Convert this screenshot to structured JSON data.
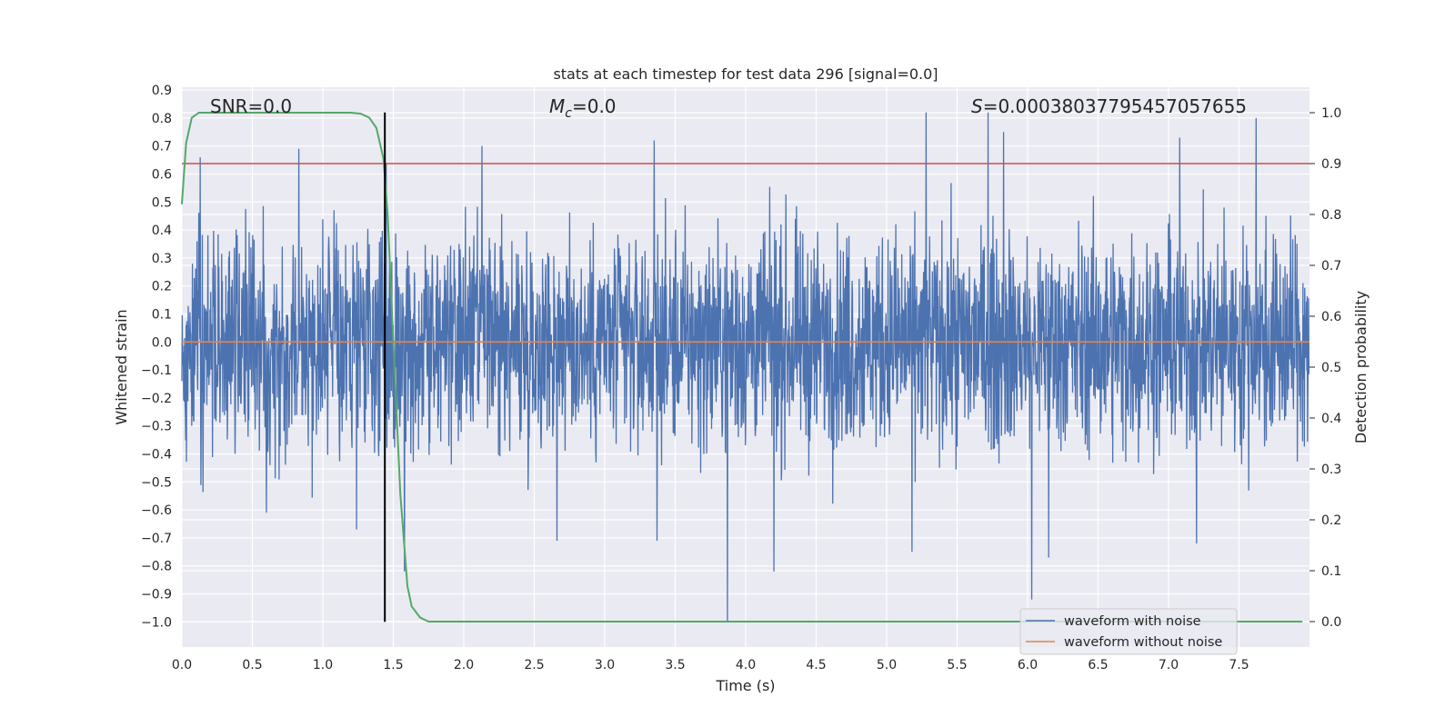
{
  "chart_data": {
    "type": "line",
    "title": "stats at each timestep for test data 296 [signal=0.0]",
    "xlabel": "Time (s)",
    "ylabel": "Whitened strain",
    "ylabel_right": "Detection probability",
    "xlim": [
      0.0,
      8.0
    ],
    "ylim": [
      -1.09,
      0.91
    ],
    "ylim_right": [
      -0.05,
      1.05
    ],
    "x_ticks": [
      "0.0",
      "0.5",
      "1.0",
      "1.5",
      "2.0",
      "2.5",
      "3.0",
      "3.5",
      "4.0",
      "4.5",
      "5.0",
      "5.5",
      "6.0",
      "6.5",
      "7.0",
      "7.5"
    ],
    "y_ticks": [
      "0.9",
      "0.8",
      "0.7",
      "0.6",
      "0.5",
      "0.4",
      "0.3",
      "0.2",
      "0.1",
      "0.0",
      "-0.1",
      "-0.2",
      "-0.3",
      "-0.4",
      "-0.5",
      "-0.6",
      "-0.7",
      "-0.8",
      "-0.9",
      "-1.0"
    ],
    "y_ticks_right": [
      "1.0",
      "0.9",
      "0.8",
      "0.7",
      "0.6",
      "0.5",
      "0.4",
      "0.3",
      "0.2",
      "0.1",
      "0.0"
    ],
    "annotations": {
      "snr": "SNR=0.0",
      "mc_symbol": "M",
      "mc_sub": "c",
      "mc_value": "=0.0",
      "s_symbol": "S",
      "s_value": "=0.00038037795457057655"
    },
    "legend": [
      "waveform with noise",
      "waveform without noise"
    ],
    "series": [
      {
        "name": "waveform with noise",
        "color": "#4c72b0",
        "description": "dense noise, envelope approx ±0.45, peaks up to 0.82 and down to -1.0 (at t≈3.87)",
        "peaks_high": [
          [
            0.13,
            0.66
          ],
          [
            0.83,
            0.69
          ],
          [
            1.45,
            0.64
          ],
          [
            2.13,
            0.7
          ],
          [
            3.35,
            0.72
          ],
          [
            5.28,
            0.82
          ],
          [
            5.72,
            0.82
          ],
          [
            5.83,
            0.75
          ],
          [
            7.08,
            0.73
          ],
          [
            7.62,
            0.8
          ]
        ],
        "peaks_low": [
          [
            0.6,
            -0.61
          ],
          [
            1.24,
            -0.67
          ],
          [
            1.58,
            -0.82
          ],
          [
            2.66,
            -0.71
          ],
          [
            3.37,
            -0.71
          ],
          [
            3.87,
            -1.0
          ],
          [
            4.2,
            -0.82
          ],
          [
            5.18,
            -0.75
          ],
          [
            6.03,
            -0.92
          ],
          [
            6.15,
            -0.77
          ],
          [
            7.2,
            -0.72
          ]
        ]
      },
      {
        "name": "waveform without noise",
        "color": "#dd8452",
        "x": [
          0.0,
          8.0
        ],
        "y": [
          0.0,
          0.0
        ]
      },
      {
        "name": "detection probability",
        "axis": "right",
        "color": "#55a868",
        "x": [
          0.0,
          0.03,
          0.07,
          0.12,
          0.2,
          0.4,
          0.8,
          1.1,
          1.2,
          1.27,
          1.33,
          1.38,
          1.43,
          1.46,
          1.5,
          1.55,
          1.6,
          1.63,
          1.69,
          1.75,
          1.85,
          2.5,
          3.0,
          5.0,
          7.95
        ],
        "y": [
          0.82,
          0.94,
          0.99,
          1.0,
          1.0,
          1.0,
          1.0,
          1.0,
          1.0,
          0.998,
          0.99,
          0.97,
          0.91,
          0.8,
          0.55,
          0.25,
          0.07,
          0.03,
          0.008,
          0.0,
          0.0,
          0.0,
          0.0,
          0.0,
          0.0
        ]
      }
    ],
    "hlines": [
      {
        "name": "threshold",
        "axis": "right",
        "y": 0.9,
        "color": "#c44e52"
      }
    ],
    "vlines": [
      {
        "name": "detection-time",
        "x": 1.44,
        "ymin": -1.0,
        "ymax": 0.82,
        "color": "#000000"
      }
    ],
    "background": "#eaeaf2",
    "grid": true
  }
}
